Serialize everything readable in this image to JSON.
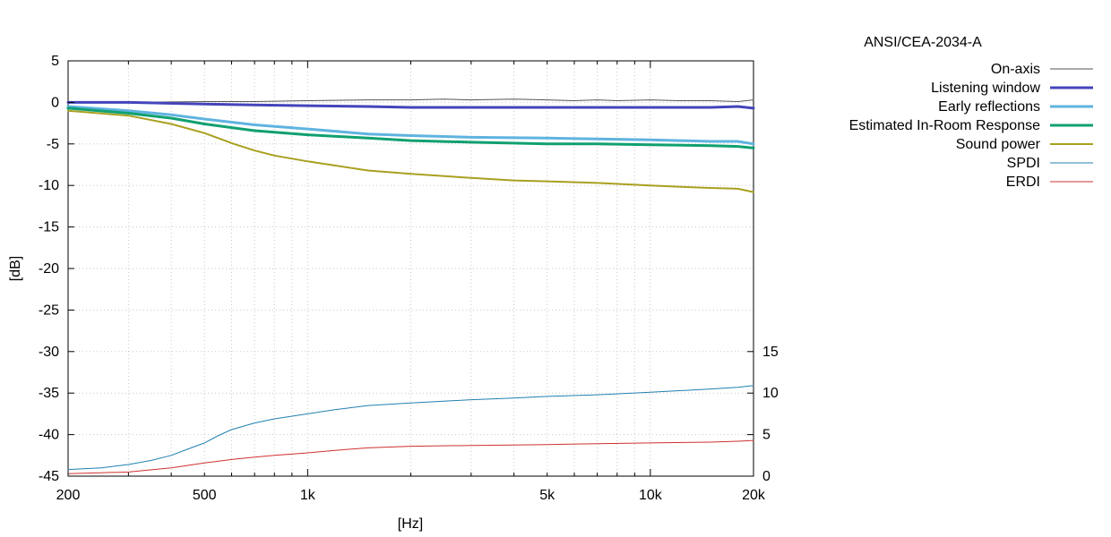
{
  "chart_data": {
    "type": "line",
    "title": "ANSI/CEA-2034-A",
    "xlabel": "[Hz]",
    "ylabel": "[dB]",
    "x_scale": "log",
    "xlim": [
      200,
      20000
    ],
    "ylim": [
      -45,
      5
    ],
    "y2lim": [
      0,
      50
    ],
    "grid": true,
    "legend": "top-right",
    "x_ticks": [
      200,
      500,
      1000,
      5000,
      10000,
      20000
    ],
    "x_tick_labels": [
      "200",
      "500",
      "1k",
      "5k",
      "10k",
      "20k"
    ],
    "y_ticks": [
      5,
      0,
      -5,
      -10,
      -15,
      -20,
      -25,
      -30,
      -35,
      -40,
      -45
    ],
    "y_tick_labels": [
      "5",
      "0",
      "-5",
      "-10",
      "-15",
      "-20",
      "-25",
      "-30",
      "-35",
      "-40",
      "-45"
    ],
    "y2_ticks": [
      15,
      10,
      5,
      0
    ],
    "y2_tick_labels": [
      "15",
      "10",
      "5",
      "0"
    ],
    "series": [
      {
        "name": "On-axis",
        "color": "#555555",
        "width": 1,
        "axis": "y",
        "x": [
          200,
          300,
          500,
          700,
          1000,
          1500,
          2000,
          2500,
          3000,
          4000,
          5000,
          6000,
          7000,
          8000,
          10000,
          12000,
          15000,
          18000,
          20000
        ],
        "y": [
          0,
          0,
          0.1,
          0.1,
          0.2,
          0.3,
          0.3,
          0.4,
          0.3,
          0.4,
          0.3,
          0.2,
          0.3,
          0.2,
          0.3,
          0.2,
          0.2,
          0.1,
          0.3
        ]
      },
      {
        "name": "Listening window",
        "color": "#4444bb",
        "width": 3,
        "axis": "y",
        "x": [
          200,
          300,
          500,
          700,
          1000,
          1500,
          2000,
          3000,
          5000,
          7000,
          10000,
          15000,
          18000,
          20000
        ],
        "y": [
          0,
          0,
          -0.2,
          -0.3,
          -0.4,
          -0.5,
          -0.6,
          -0.6,
          -0.6,
          -0.6,
          -0.6,
          -0.6,
          -0.5,
          -0.7
        ]
      },
      {
        "name": "Early reflections",
        "color": "#5fb3e0",
        "width": 3,
        "axis": "y",
        "x": [
          200,
          300,
          400,
          500,
          700,
          1000,
          1500,
          2000,
          3000,
          5000,
          7000,
          10000,
          15000,
          18000,
          20000
        ],
        "y": [
          -0.5,
          -1.0,
          -1.5,
          -2.0,
          -2.7,
          -3.2,
          -3.8,
          -4.0,
          -4.2,
          -4.3,
          -4.4,
          -4.5,
          -4.7,
          -4.7,
          -5.0
        ]
      },
      {
        "name": "Estimated In-Room Response",
        "color": "#10a070",
        "width": 3,
        "axis": "y",
        "x": [
          200,
          300,
          400,
          500,
          700,
          1000,
          1500,
          2000,
          3000,
          5000,
          7000,
          10000,
          15000,
          18000,
          20000
        ],
        "y": [
          -0.7,
          -1.3,
          -1.9,
          -2.6,
          -3.4,
          -3.9,
          -4.3,
          -4.6,
          -4.8,
          -5.0,
          -5.0,
          -5.1,
          -5.2,
          -5.3,
          -5.5
        ]
      },
      {
        "name": "Sound power",
        "color": "#a8a020",
        "width": 2,
        "axis": "y",
        "x": [
          200,
          300,
          400,
          500,
          600,
          700,
          800,
          1000,
          1200,
          1500,
          2000,
          3000,
          4000,
          5000,
          7000,
          10000,
          13000,
          15000,
          18000,
          20000
        ],
        "y": [
          -1.0,
          -1.6,
          -2.6,
          -3.7,
          -4.9,
          -5.8,
          -6.4,
          -7.1,
          -7.6,
          -8.2,
          -8.6,
          -9.1,
          -9.4,
          -9.5,
          -9.7,
          -10.0,
          -10.2,
          -10.3,
          -10.4,
          -10.8
        ]
      },
      {
        "name": "SPDI",
        "color": "#2080b0",
        "width": 1,
        "axis": "y2",
        "x": [
          200,
          250,
          300,
          350,
          400,
          450,
          500,
          550,
          600,
          700,
          800,
          1000,
          1200,
          1500,
          2000,
          3000,
          4000,
          5000,
          7000,
          10000,
          15000,
          18000,
          20000
        ],
        "y": [
          0.8,
          1.0,
          1.4,
          1.9,
          2.5,
          3.3,
          4.0,
          4.9,
          5.6,
          6.4,
          6.9,
          7.5,
          8.0,
          8.5,
          8.8,
          9.2,
          9.4,
          9.6,
          9.8,
          10.1,
          10.5,
          10.7,
          10.9
        ]
      },
      {
        "name": "ERDI",
        "color": "#d03030",
        "width": 1,
        "axis": "y2",
        "x": [
          200,
          300,
          400,
          500,
          600,
          700,
          800,
          1000,
          1200,
          1500,
          2000,
          3000,
          5000,
          7000,
          10000,
          15000,
          18000,
          20000
        ],
        "y": [
          0.3,
          0.5,
          1.0,
          1.6,
          2.0,
          2.3,
          2.5,
          2.8,
          3.1,
          3.4,
          3.6,
          3.7,
          3.8,
          3.9,
          4.0,
          4.1,
          4.2,
          4.3
        ]
      }
    ]
  }
}
